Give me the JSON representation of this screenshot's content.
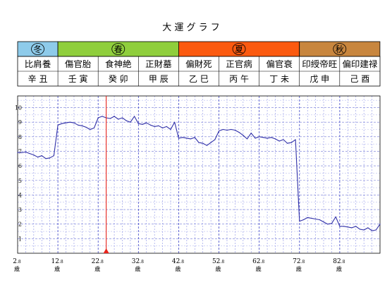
{
  "title": "大 運 グ ラ フ",
  "seasons": [
    {
      "label": "冬",
      "color": "#8ecbea"
    },
    {
      "label": "春",
      "color": "#8fce3c"
    },
    {
      "label": "夏",
      "color": "#fb5a10"
    },
    {
      "label": "秋",
      "color": "#c8863e"
    }
  ],
  "season_spans": [
    [
      0,
      1
    ],
    [
      1,
      4
    ],
    [
      4,
      7
    ],
    [
      7,
      9
    ]
  ],
  "stars": [
    "比肩養",
    "傷官胎",
    "食神絶",
    "正財墓",
    "偏財死",
    "正官病",
    "偏官衰",
    "印綬帝旺",
    "偏印建禄"
  ],
  "pillars": [
    "辛 丑",
    "壬 寅",
    "癸 卯",
    "甲 辰",
    "乙 巳",
    "丙 午",
    "丁 未",
    "戊 申",
    "己 酉"
  ],
  "age_suffix": "歳",
  "chart_data": {
    "type": "line",
    "title": "大 運 グ ラ フ",
    "xlabel": "",
    "ylabel": "",
    "x_ticks": [
      {
        "age": 2.8,
        "major": "2",
        "minor": ".8"
      },
      {
        "age": 12.8,
        "major": "12",
        "minor": ".8"
      },
      {
        "age": 22.8,
        "major": "22",
        "minor": ".8"
      },
      {
        "age": 32.8,
        "major": "32",
        "minor": ".8"
      },
      {
        "age": 42.8,
        "major": "42",
        "minor": ".8"
      },
      {
        "age": 52.8,
        "major": "52",
        "minor": ".8"
      },
      {
        "age": 62.8,
        "major": "62",
        "minor": ".8"
      },
      {
        "age": 72.8,
        "major": "72",
        "minor": ".8"
      },
      {
        "age": 82.8,
        "major": "82",
        "minor": ".8"
      }
    ],
    "y_ticks": [
      1,
      2,
      3,
      4,
      5,
      6,
      7,
      8,
      9,
      10
    ],
    "xlim": [
      2.8,
      92.8
    ],
    "ylim": [
      0,
      10.8
    ],
    "grid": true,
    "marker_age": 24.8,
    "x": [
      2.8,
      3.8,
      4.8,
      5.8,
      6.8,
      7.8,
      8.8,
      9.8,
      10.8,
      11.8,
      12.8,
      13.8,
      14.8,
      15.8,
      16.8,
      17.8,
      18.8,
      19.8,
      20.8,
      21.8,
      22.8,
      23.8,
      24.8,
      25.8,
      26.8,
      27.8,
      28.8,
      29.8,
      30.8,
      31.8,
      32.8,
      33.8,
      34.8,
      35.8,
      36.8,
      37.8,
      38.8,
      39.8,
      40.8,
      41.8,
      42.8,
      43.8,
      44.8,
      45.8,
      46.8,
      47.8,
      48.8,
      49.8,
      50.8,
      51.8,
      52.8,
      53.8,
      54.8,
      55.8,
      56.8,
      57.8,
      58.8,
      59.8,
      60.8,
      61.8,
      62.8,
      63.8,
      64.8,
      65.8,
      66.8,
      67.8,
      68.8,
      69.8,
      70.8,
      71.8,
      72.8,
      73.8,
      74.8,
      75.8,
      76.8,
      77.8,
      78.8,
      79.8,
      80.8,
      81.8,
      82.8,
      83.8,
      84.8,
      85.8,
      86.8,
      87.8,
      88.8,
      89.8,
      90.8,
      91.8,
      92.8
    ],
    "values": [
      6.9,
      6.9,
      6.95,
      6.85,
      6.75,
      6.6,
      6.7,
      6.5,
      6.55,
      6.7,
      8.8,
      8.9,
      8.95,
      9.0,
      8.95,
      8.8,
      8.75,
      8.65,
      8.5,
      8.6,
      9.3,
      9.4,
      9.3,
      9.25,
      9.4,
      9.2,
      9.3,
      9.1,
      9.0,
      9.4,
      8.9,
      8.85,
      8.95,
      8.8,
      8.7,
      8.75,
      8.6,
      8.7,
      8.5,
      9.0,
      7.9,
      7.95,
      7.9,
      7.85,
      7.95,
      7.6,
      7.55,
      7.4,
      7.6,
      7.8,
      8.4,
      8.5,
      8.45,
      8.5,
      8.45,
      8.3,
      8.1,
      7.85,
      8.25,
      7.9,
      8.0,
      7.95,
      7.9,
      7.95,
      7.85,
      7.7,
      7.8,
      7.55,
      7.6,
      7.8,
      2.2,
      2.3,
      2.45,
      2.4,
      2.35,
      2.3,
      2.15,
      2.0,
      2.05,
      2.5,
      1.85,
      1.85,
      1.8,
      1.75,
      1.85,
      1.65,
      1.6,
      1.75,
      1.55,
      1.6,
      2.0
    ]
  }
}
